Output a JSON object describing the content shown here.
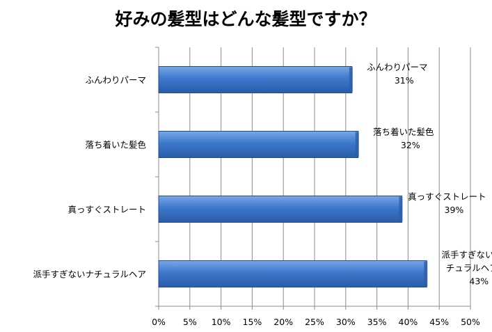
{
  "chart_data": {
    "type": "bar",
    "orientation": "horizontal",
    "title": "好みの髪型はどんな髪型ですか？",
    "categories": [
      "ふんわりパーマ",
      "落ち着いた髪色",
      "真っすぐストレート",
      "派手すぎないナチュラルヘア"
    ],
    "values": [
      31,
      32,
      39,
      43
    ],
    "value_labels": [
      "31%",
      "32%",
      "39%",
      "43%"
    ],
    "data_label_lines": [
      [
        "ふんわりパーマ",
        "31%"
      ],
      [
        "落ち着いた髪色",
        "32%"
      ],
      [
        "真っすぐストレート",
        "39%"
      ],
      [
        "派手すぎないナ",
        "チュラルヘア",
        "43%"
      ]
    ],
    "xlim": [
      0,
      50
    ],
    "x_ticks": [
      0,
      5,
      10,
      15,
      20,
      25,
      30,
      35,
      40,
      45,
      50
    ],
    "x_tick_labels": [
      "0%",
      "5%",
      "10%",
      "15%",
      "20%",
      "25%",
      "30%",
      "35%",
      "40%",
      "45%",
      "50%"
    ],
    "xlabel": "",
    "ylabel": "",
    "grid": true,
    "legend": "none",
    "bar_color": "#3a72c4",
    "bar_edge_color": "#1f4f8f"
  }
}
